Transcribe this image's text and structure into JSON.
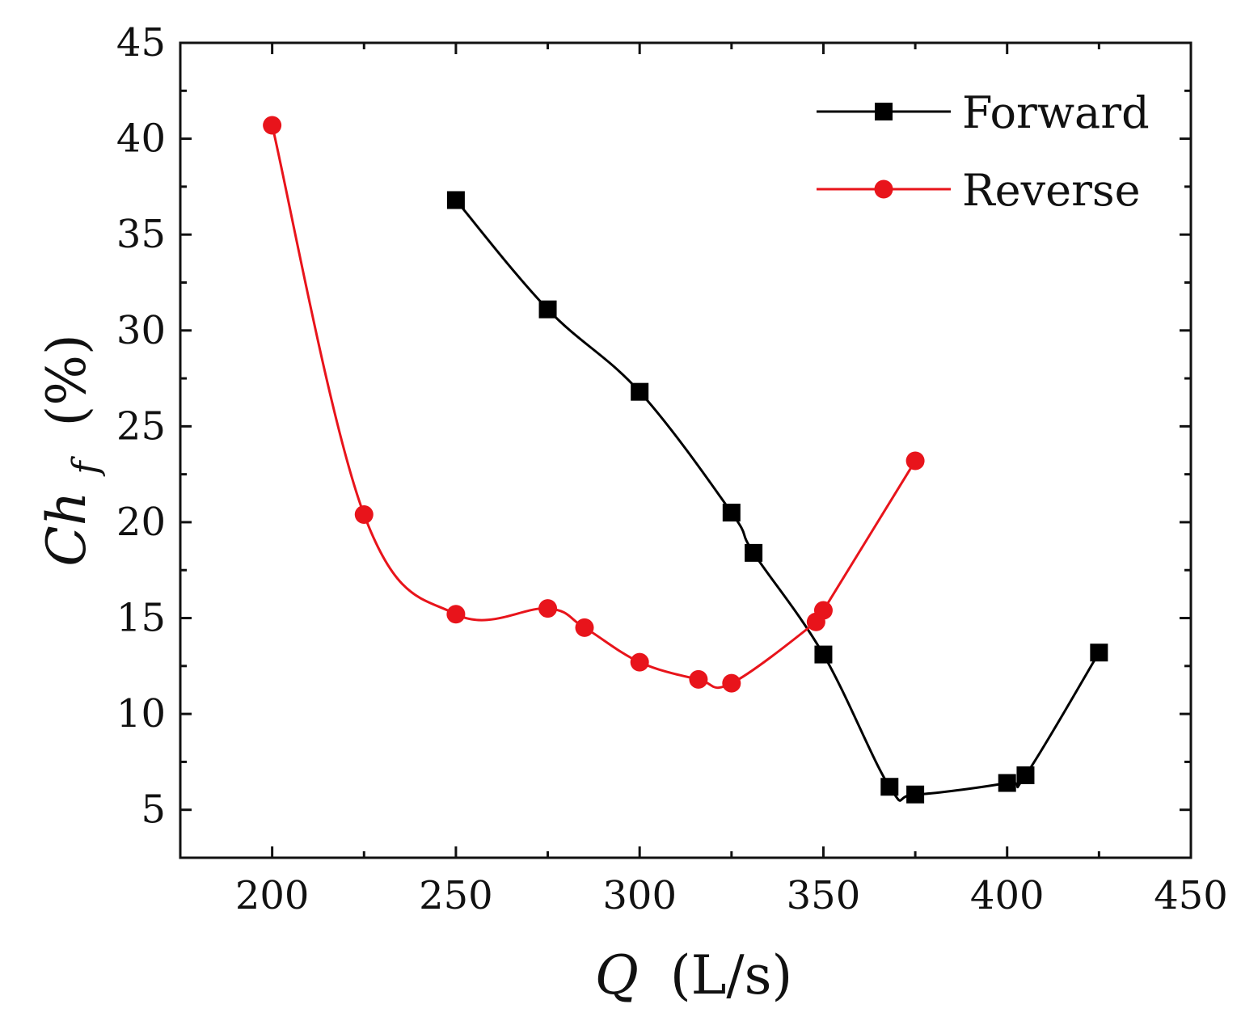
{
  "chart_data": {
    "type": "line",
    "title": "",
    "xlabel": {
      "var": "Q",
      "unit": "(L/s)"
    },
    "ylabel": {
      "var": "Ch",
      "sub": "f",
      "unit": "(%)"
    },
    "xlim": [
      175,
      450
    ],
    "ylim": [
      2.5,
      45
    ],
    "xticks": [
      200,
      250,
      300,
      350,
      400,
      450
    ],
    "yticks": [
      5,
      10,
      15,
      20,
      25,
      30,
      35,
      40,
      45
    ],
    "grid": false,
    "legend_position": "top-right",
    "series": [
      {
        "name": "Forward",
        "color": "#000000",
        "marker": "square",
        "x": [
          250,
          275,
          300,
          325,
          331,
          350,
          368,
          375,
          400,
          405,
          425
        ],
        "y": [
          36.8,
          31.1,
          26.8,
          20.5,
          18.4,
          13.1,
          6.2,
          5.8,
          6.4,
          6.8,
          13.2
        ]
      },
      {
        "name": "Reverse",
        "color": "#e8141b",
        "marker": "circle",
        "x": [
          200,
          225,
          250,
          275,
          285,
          300,
          316,
          325,
          348,
          350,
          375
        ],
        "y": [
          40.7,
          20.4,
          15.2,
          15.5,
          14.5,
          12.7,
          11.8,
          11.6,
          14.8,
          15.4,
          23.2
        ]
      }
    ]
  }
}
